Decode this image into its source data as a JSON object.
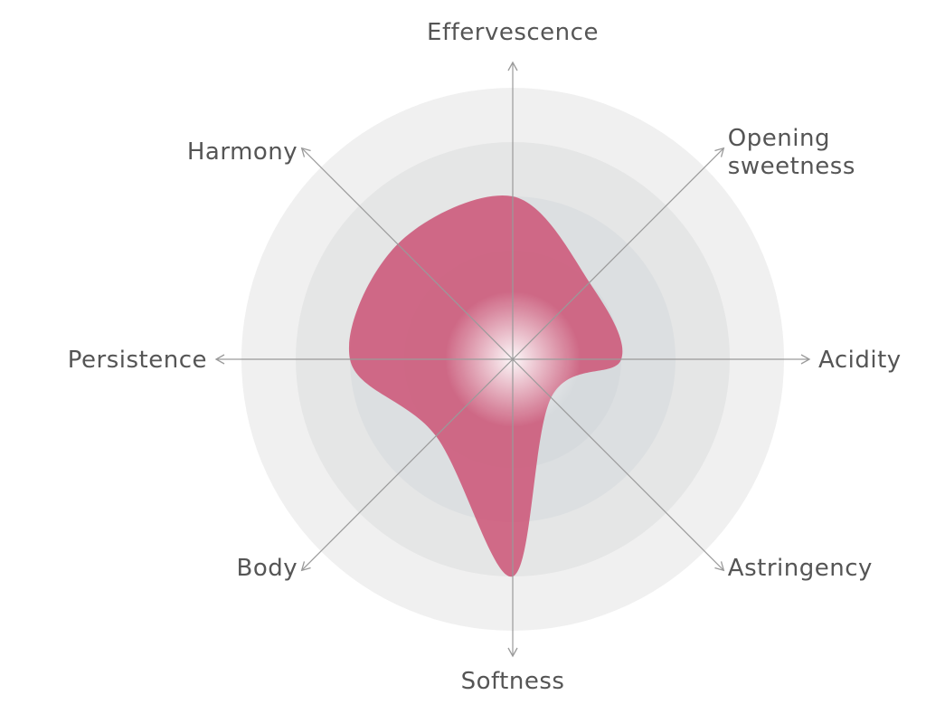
{
  "chart_data": {
    "type": "radar",
    "title": "",
    "axes": [
      "Effervescence",
      "Opening sweetness",
      "Acidity",
      "Astringency",
      "Softness",
      "Body",
      "Persistence",
      "Harmony"
    ],
    "axis_label_lines": [
      [
        "Effervescence"
      ],
      [
        "Opening",
        "sweetness"
      ],
      [
        "Acidity"
      ],
      [
        "Astringency"
      ],
      [
        "Softness"
      ],
      [
        "Body"
      ],
      [
        "Persistence"
      ],
      [
        "Harmony"
      ]
    ],
    "values": [
      3,
      2,
      2,
      1,
      4,
      2,
      3,
      3
    ],
    "range": [
      0,
      5
    ],
    "rings": 5,
    "curve": "smooth",
    "colors": {
      "series": "#cc5376",
      "rings": [
        "#d0d5d8",
        "#d6dadd",
        "#dcdfe1",
        "#e5e6e6",
        "#f0f0f0"
      ],
      "axis": "#9a9a9a",
      "label": "#555555"
    }
  }
}
